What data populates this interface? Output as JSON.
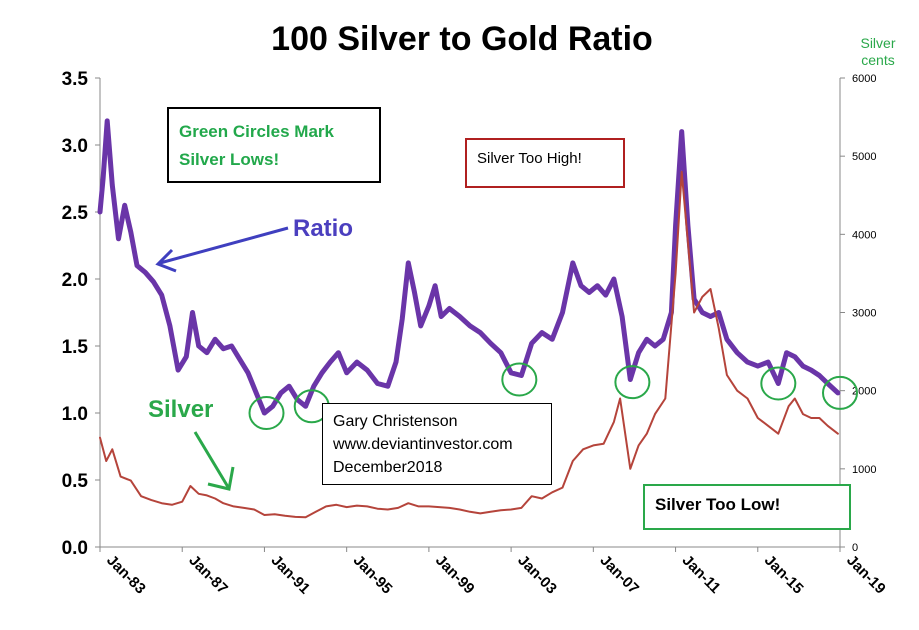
{
  "chart_data": {
    "type": "line",
    "title": "100 Silver to Gold Ratio",
    "y_right_label_line1": "Silver",
    "y_right_label_line2": "cents",
    "ylim_left": [
      0,
      3.5
    ],
    "ylim_right": [
      0,
      6000
    ],
    "y_left_ticks": [
      "0.0",
      "0.5",
      "1.0",
      "1.5",
      "2.0",
      "2.5",
      "3.0",
      "3.5"
    ],
    "y_right_ticks": [
      "0",
      "1000",
      "2000",
      "3000",
      "4000",
      "5000",
      "6000"
    ],
    "x_ticks": [
      "Jan-83",
      "Jan-87",
      "Jan-91",
      "Jan-95",
      "Jan-99",
      "Jan-03",
      "Jan-07",
      "Jan-11",
      "Jan-15",
      "Jan-19"
    ],
    "xlim": [
      1983.0,
      2019.0
    ],
    "grid": false,
    "series": [
      {
        "axis": "left",
        "color": "#6a35a8",
        "points": [
          [
            1983.0,
            2.5
          ],
          [
            1983.15,
            2.75
          ],
          [
            1983.35,
            3.18
          ],
          [
            1983.6,
            2.7
          ],
          [
            1983.9,
            2.3
          ],
          [
            1984.2,
            2.55
          ],
          [
            1984.5,
            2.35
          ],
          [
            1984.8,
            2.1
          ],
          [
            1985.2,
            2.05
          ],
          [
            1985.6,
            1.98
          ],
          [
            1986.0,
            1.88
          ],
          [
            1986.4,
            1.65
          ],
          [
            1986.8,
            1.32
          ],
          [
            1987.2,
            1.42
          ],
          [
            1987.5,
            1.75
          ],
          [
            1987.8,
            1.5
          ],
          [
            1988.2,
            1.45
          ],
          [
            1988.6,
            1.55
          ],
          [
            1989.0,
            1.48
          ],
          [
            1989.4,
            1.5
          ],
          [
            1989.8,
            1.4
          ],
          [
            1990.2,
            1.3
          ],
          [
            1990.6,
            1.15
          ],
          [
            1991.0,
            1.0
          ],
          [
            1991.4,
            1.05
          ],
          [
            1991.8,
            1.15
          ],
          [
            1992.2,
            1.2
          ],
          [
            1992.6,
            1.1
          ],
          [
            1993.0,
            1.05
          ],
          [
            1993.4,
            1.2
          ],
          [
            1993.8,
            1.3
          ],
          [
            1994.2,
            1.38
          ],
          [
            1994.6,
            1.45
          ],
          [
            1995.0,
            1.3
          ],
          [
            1995.5,
            1.38
          ],
          [
            1996.0,
            1.32
          ],
          [
            1996.5,
            1.22
          ],
          [
            1997.0,
            1.2
          ],
          [
            1997.4,
            1.38
          ],
          [
            1997.7,
            1.7
          ],
          [
            1998.0,
            2.12
          ],
          [
            1998.3,
            1.9
          ],
          [
            1998.6,
            1.65
          ],
          [
            1999.0,
            1.8
          ],
          [
            1999.3,
            1.95
          ],
          [
            1999.6,
            1.72
          ],
          [
            2000.0,
            1.78
          ],
          [
            2000.5,
            1.72
          ],
          [
            2001.0,
            1.65
          ],
          [
            2001.5,
            1.6
          ],
          [
            2002.0,
            1.52
          ],
          [
            2002.5,
            1.45
          ],
          [
            2003.0,
            1.3
          ],
          [
            2003.5,
            1.28
          ],
          [
            2004.0,
            1.52
          ],
          [
            2004.5,
            1.6
          ],
          [
            2005.0,
            1.55
          ],
          [
            2005.5,
            1.75
          ],
          [
            2006.0,
            2.12
          ],
          [
            2006.4,
            1.95
          ],
          [
            2006.8,
            1.9
          ],
          [
            2007.2,
            1.95
          ],
          [
            2007.6,
            1.88
          ],
          [
            2008.0,
            2.0
          ],
          [
            2008.4,
            1.72
          ],
          [
            2008.8,
            1.25
          ],
          [
            2009.2,
            1.45
          ],
          [
            2009.6,
            1.55
          ],
          [
            2010.0,
            1.5
          ],
          [
            2010.4,
            1.55
          ],
          [
            2010.8,
            1.75
          ],
          [
            2011.0,
            2.4
          ],
          [
            2011.3,
            3.1
          ],
          [
            2011.6,
            2.4
          ],
          [
            2011.9,
            1.85
          ],
          [
            2012.3,
            1.75
          ],
          [
            2012.7,
            1.72
          ],
          [
            2013.1,
            1.75
          ],
          [
            2013.5,
            1.55
          ],
          [
            2014.0,
            1.45
          ],
          [
            2014.5,
            1.38
          ],
          [
            2015.0,
            1.35
          ],
          [
            2015.5,
            1.38
          ],
          [
            2016.0,
            1.22
          ],
          [
            2016.4,
            1.45
          ],
          [
            2016.8,
            1.42
          ],
          [
            2017.2,
            1.35
          ],
          [
            2017.6,
            1.32
          ],
          [
            2018.0,
            1.28
          ],
          [
            2018.4,
            1.22
          ],
          [
            2018.9,
            1.15
          ]
        ]
      },
      {
        "axis": "right",
        "color": "#b5443b",
        "points": [
          [
            1983.0,
            1400
          ],
          [
            1983.3,
            1100
          ],
          [
            1983.6,
            1250
          ],
          [
            1984.0,
            900
          ],
          [
            1984.5,
            850
          ],
          [
            1985.0,
            650
          ],
          [
            1985.5,
            600
          ],
          [
            1986.0,
            560
          ],
          [
            1986.5,
            540
          ],
          [
            1987.0,
            580
          ],
          [
            1987.4,
            780
          ],
          [
            1987.8,
            680
          ],
          [
            1988.2,
            660
          ],
          [
            1988.6,
            620
          ],
          [
            1989.0,
            560
          ],
          [
            1989.5,
            520
          ],
          [
            1990.0,
            500
          ],
          [
            1990.5,
            480
          ],
          [
            1991.0,
            410
          ],
          [
            1991.5,
            420
          ],
          [
            1992.0,
            400
          ],
          [
            1992.5,
            385
          ],
          [
            1993.0,
            380
          ],
          [
            1993.5,
            450
          ],
          [
            1994.0,
            520
          ],
          [
            1994.5,
            540
          ],
          [
            1995.0,
            510
          ],
          [
            1995.5,
            530
          ],
          [
            1996.0,
            520
          ],
          [
            1996.5,
            490
          ],
          [
            1997.0,
            480
          ],
          [
            1997.5,
            500
          ],
          [
            1998.0,
            560
          ],
          [
            1998.5,
            520
          ],
          [
            1999.0,
            520
          ],
          [
            1999.5,
            510
          ],
          [
            2000.0,
            500
          ],
          [
            2000.5,
            480
          ],
          [
            2001.0,
            450
          ],
          [
            2001.5,
            430
          ],
          [
            2002.0,
            450
          ],
          [
            2002.5,
            470
          ],
          [
            2003.0,
            480
          ],
          [
            2003.5,
            500
          ],
          [
            2004.0,
            650
          ],
          [
            2004.5,
            620
          ],
          [
            2005.0,
            700
          ],
          [
            2005.5,
            760
          ],
          [
            2006.0,
            1100
          ],
          [
            2006.5,
            1250
          ],
          [
            2007.0,
            1300
          ],
          [
            2007.5,
            1320
          ],
          [
            2008.0,
            1600
          ],
          [
            2008.3,
            1900
          ],
          [
            2008.8,
            1000
          ],
          [
            2009.2,
            1300
          ],
          [
            2009.6,
            1450
          ],
          [
            2010.0,
            1700
          ],
          [
            2010.5,
            1900
          ],
          [
            2011.0,
            3500
          ],
          [
            2011.3,
            4800
          ],
          [
            2011.6,
            3900
          ],
          [
            2011.9,
            3000
          ],
          [
            2012.3,
            3200
          ],
          [
            2012.7,
            3300
          ],
          [
            2013.1,
            2800
          ],
          [
            2013.5,
            2200
          ],
          [
            2014.0,
            2000
          ],
          [
            2014.5,
            1900
          ],
          [
            2015.0,
            1650
          ],
          [
            2015.5,
            1550
          ],
          [
            2016.0,
            1450
          ],
          [
            2016.5,
            1800
          ],
          [
            2016.8,
            1900
          ],
          [
            2017.2,
            1700
          ],
          [
            2017.6,
            1650
          ],
          [
            2018.0,
            1650
          ],
          [
            2018.4,
            1550
          ],
          [
            2018.9,
            1450
          ]
        ]
      }
    ],
    "circles": [
      [
        1991.1,
        1.0
      ],
      [
        1993.3,
        1.05
      ],
      [
        2003.4,
        1.25
      ],
      [
        2008.9,
        1.23
      ],
      [
        2016.0,
        1.22
      ],
      [
        2019.0,
        1.15
      ]
    ]
  },
  "annotations": {
    "green_box": {
      "line1": "Green Circles Mark",
      "line2": "Silver Lows!"
    },
    "high_box": "Silver  Too High!",
    "author_box": {
      "name": "Gary Christenson",
      "site": "www.deviantinvestor.com",
      "date": "December2018"
    },
    "low_box": "Silver   Too   Low!",
    "ratio_label": "Ratio",
    "silver_label": "Silver"
  },
  "colors": {
    "ratio": "#6a35a8",
    "silver": "#b5443b",
    "circles": "#2aa84a",
    "arrow_blue": "#3f3fbf",
    "arrow_green": "#2aa84a"
  }
}
